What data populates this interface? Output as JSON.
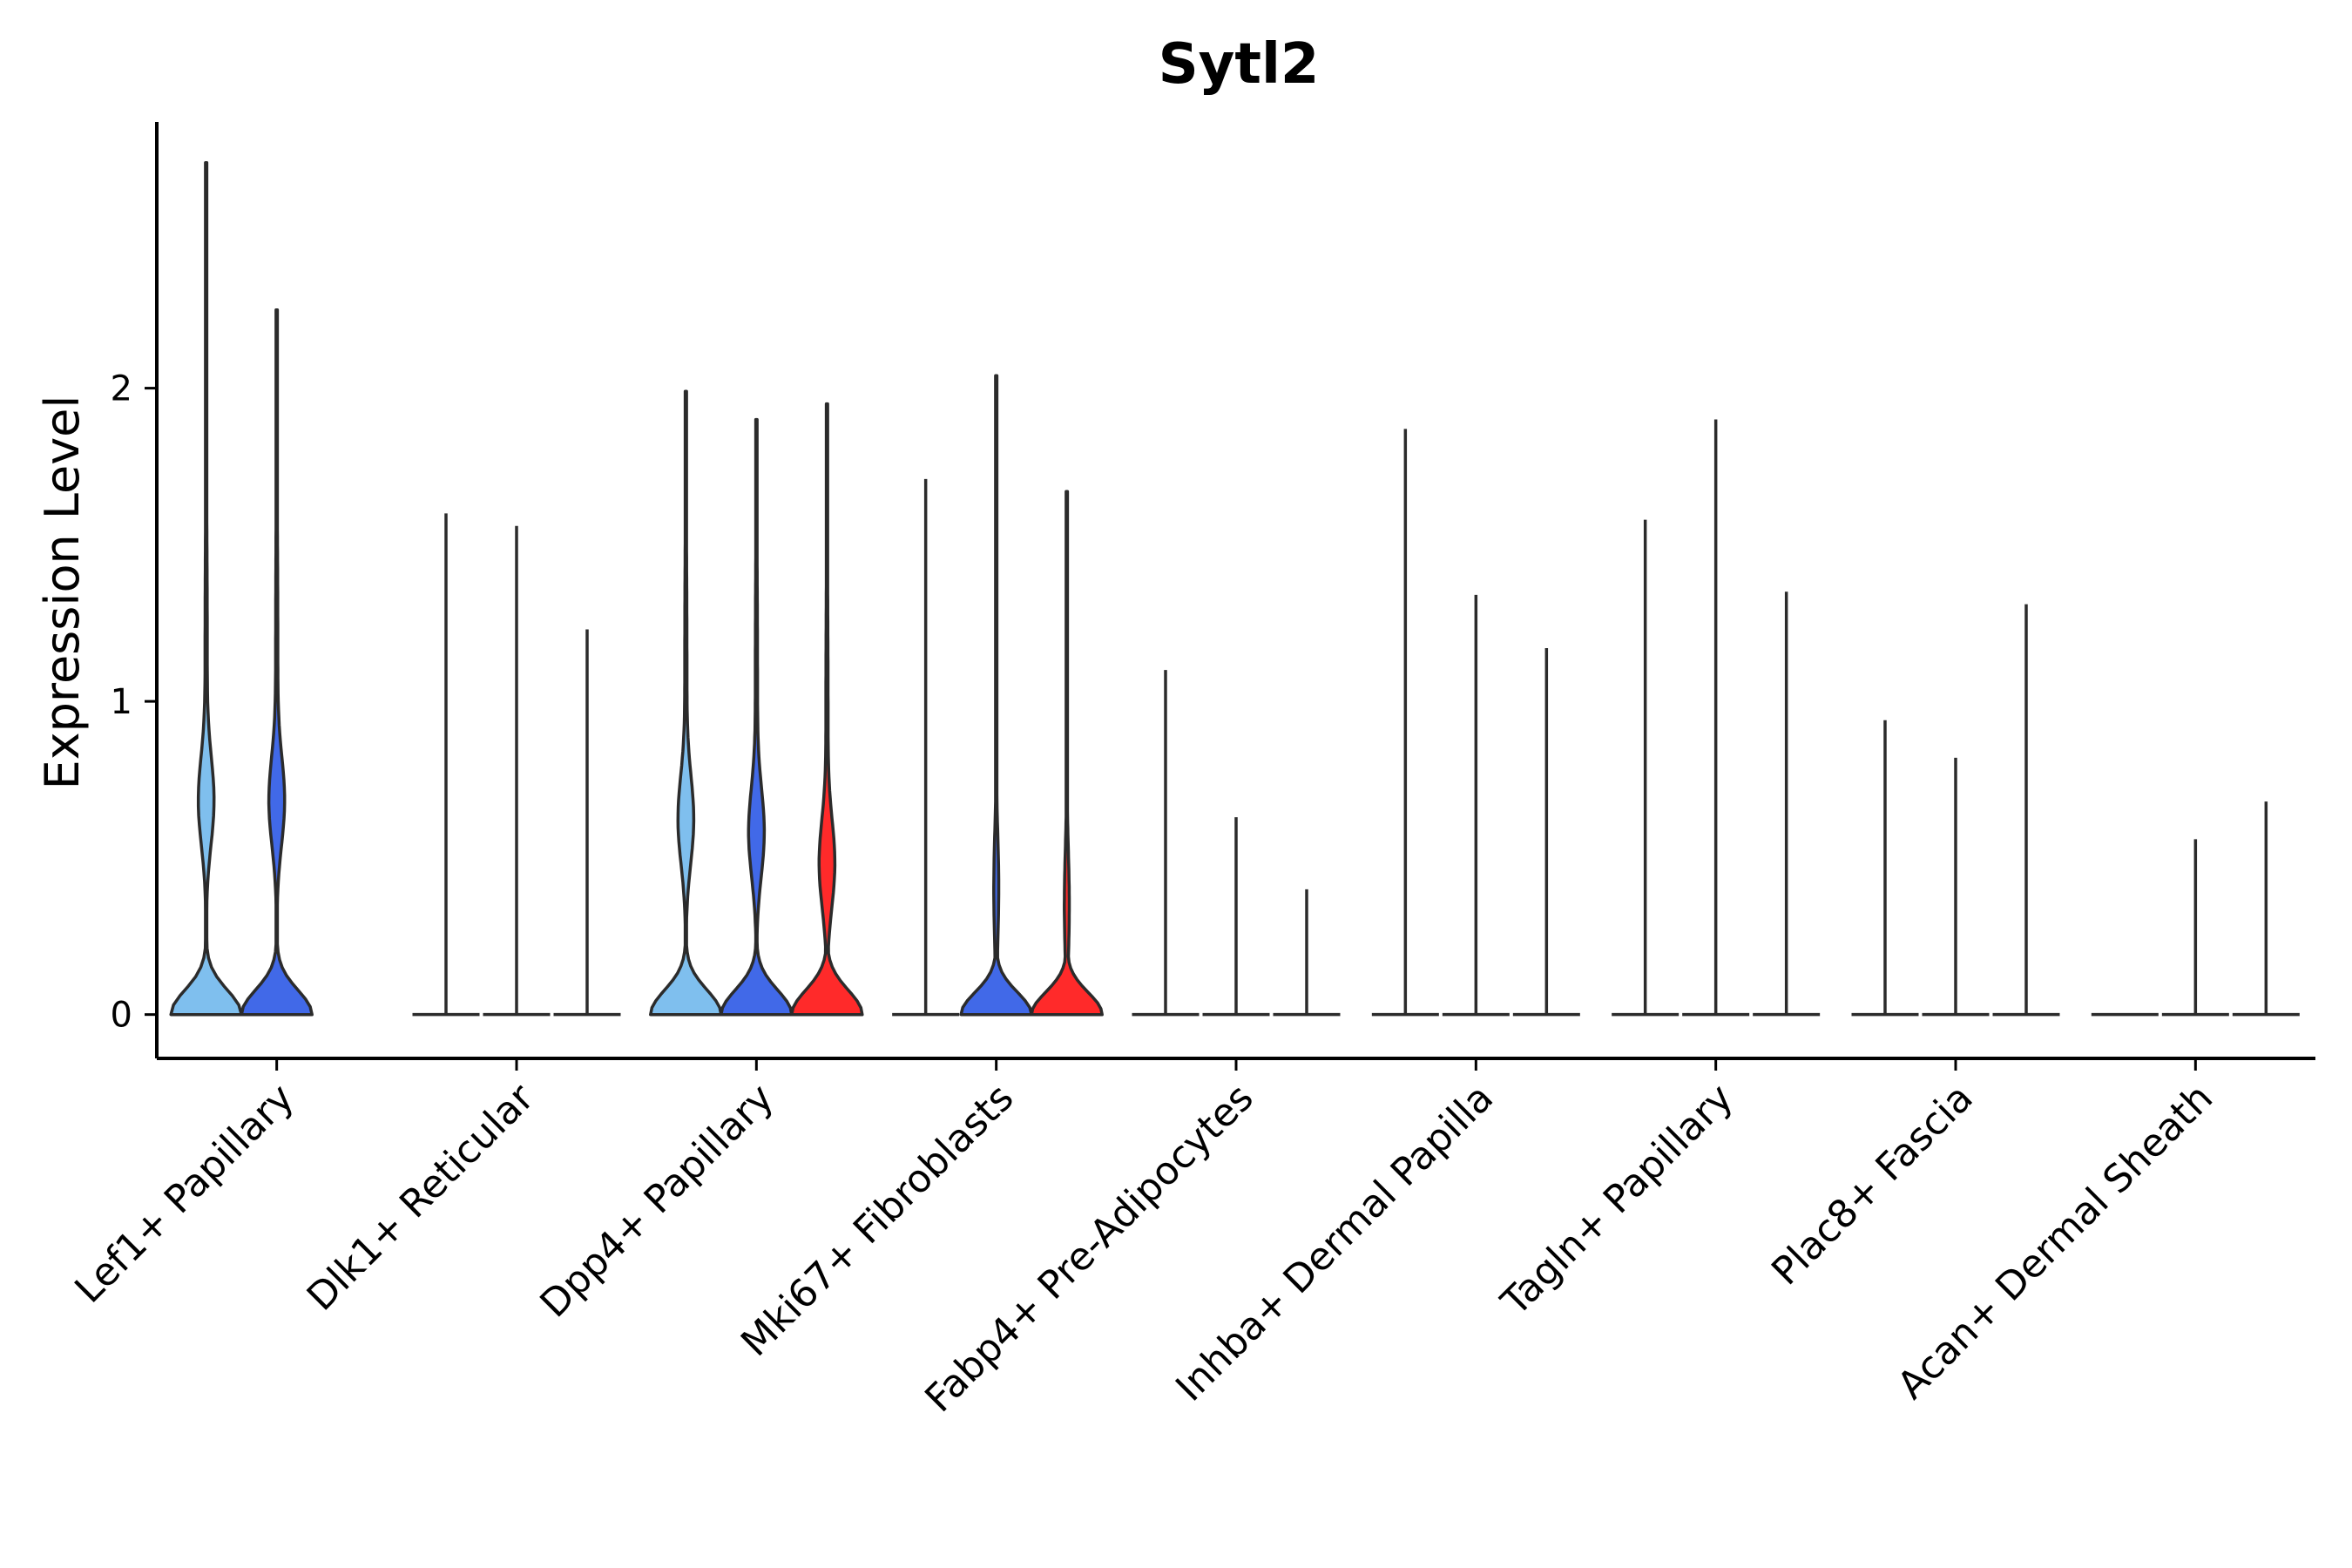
{
  "chart_data": {
    "type": "violin",
    "title": "Sytl2",
    "xlabel": "",
    "ylabel": "Expression Level",
    "ylim": [
      -0.14,
      2.85
    ],
    "yticks": [
      0,
      1,
      2
    ],
    "legend": "none",
    "colors": {
      "light_blue": "#7fbfee",
      "blue": "#4169e8",
      "red": "#ff2a2a"
    },
    "categories": [
      "Lef1+ Papillary",
      "Dlk1+ Reticular",
      "Dpp4+ Papillary",
      "Mki67+ Fibroblasts",
      "Fabp4+ Pre-Adipocytes",
      "Inhba+ Dermal Papilla",
      "Tagln+ Papillary",
      "Plac8+ Fascia",
      "Acan+ Dermal Sheath"
    ],
    "groups": [
      {
        "category": "Lef1+ Papillary",
        "violins": [
          {
            "color": "#7fbfee",
            "max": 2.72,
            "peak": 0.68,
            "shape": "bimodal",
            "filled": true
          },
          {
            "color": "#4169e8",
            "max": 2.25,
            "peak": 0.68,
            "shape": "bimodal",
            "filled": true
          }
        ]
      },
      {
        "category": "Dlk1+ Reticular",
        "violins": [
          {
            "color": "#7fbfee",
            "max": 1.6,
            "shape": "flat",
            "filled": false
          },
          {
            "color": "#4169e8",
            "max": 1.56,
            "shape": "flat",
            "filled": false
          },
          {
            "color": "#ff2a2a",
            "max": 1.23,
            "shape": "flat",
            "filled": false
          }
        ]
      },
      {
        "category": "Dpp4+ Papillary",
        "violins": [
          {
            "color": "#7fbfee",
            "max": 1.99,
            "peak": 0.62,
            "shape": "bimodal",
            "filled": true
          },
          {
            "color": "#4169e8",
            "max": 1.9,
            "peak": 0.58,
            "shape": "bimodal",
            "filled": true
          },
          {
            "color": "#ff2a2a",
            "max": 1.95,
            "peak": 0.48,
            "shape": "bimodal",
            "filled": true
          }
        ]
      },
      {
        "category": "Mki67+ Fibroblasts",
        "violins": [
          {
            "color": "#7fbfee",
            "max": 1.71,
            "shape": "flat",
            "filled": false
          },
          {
            "color": "#4169e8",
            "max": 2.04,
            "peak": 0.4,
            "shape": "base",
            "filled": true
          },
          {
            "color": "#ff2a2a",
            "max": 1.67,
            "peak": 0.35,
            "shape": "base",
            "filled": true
          }
        ]
      },
      {
        "category": "Fabp4+ Pre-Adipocytes",
        "violins": [
          {
            "color": "#7fbfee",
            "max": 1.1,
            "shape": "flat",
            "filled": false
          },
          {
            "color": "#4169e8",
            "max": 0.63,
            "shape": "flat",
            "filled": false
          },
          {
            "color": "#ff2a2a",
            "max": 0.4,
            "shape": "flat",
            "filled": false
          }
        ]
      },
      {
        "category": "Inhba+ Dermal Papilla",
        "violins": [
          {
            "color": "#7fbfee",
            "max": 1.87,
            "shape": "flat",
            "filled": false
          },
          {
            "color": "#4169e8",
            "max": 1.34,
            "shape": "flat",
            "filled": false
          },
          {
            "color": "#ff2a2a",
            "max": 1.17,
            "shape": "flat",
            "filled": false
          }
        ]
      },
      {
        "category": "Tagln+ Papillary",
        "violins": [
          {
            "color": "#7fbfee",
            "max": 1.58,
            "shape": "flat",
            "filled": false
          },
          {
            "color": "#4169e8",
            "max": 1.9,
            "shape": "flat",
            "filled": false
          },
          {
            "color": "#ff2a2a",
            "max": 1.35,
            "shape": "flat",
            "filled": false
          }
        ]
      },
      {
        "category": "Plac8+ Fascia",
        "violins": [
          {
            "color": "#7fbfee",
            "max": 0.94,
            "shape": "flat",
            "filled": false
          },
          {
            "color": "#4169e8",
            "max": 0.82,
            "shape": "flat",
            "filled": false
          },
          {
            "color": "#ff2a2a",
            "max": 1.31,
            "shape": "flat",
            "filled": false
          }
        ]
      },
      {
        "category": "Acan+ Dermal Sheath",
        "violins": [
          {
            "color": "#7fbfee",
            "max": 0.0,
            "shape": "flat",
            "filled": false
          },
          {
            "color": "#4169e8",
            "max": 0.56,
            "shape": "flat",
            "filled": false
          },
          {
            "color": "#ff2a2a",
            "max": 0.68,
            "shape": "flat",
            "filled": false
          }
        ]
      }
    ]
  }
}
